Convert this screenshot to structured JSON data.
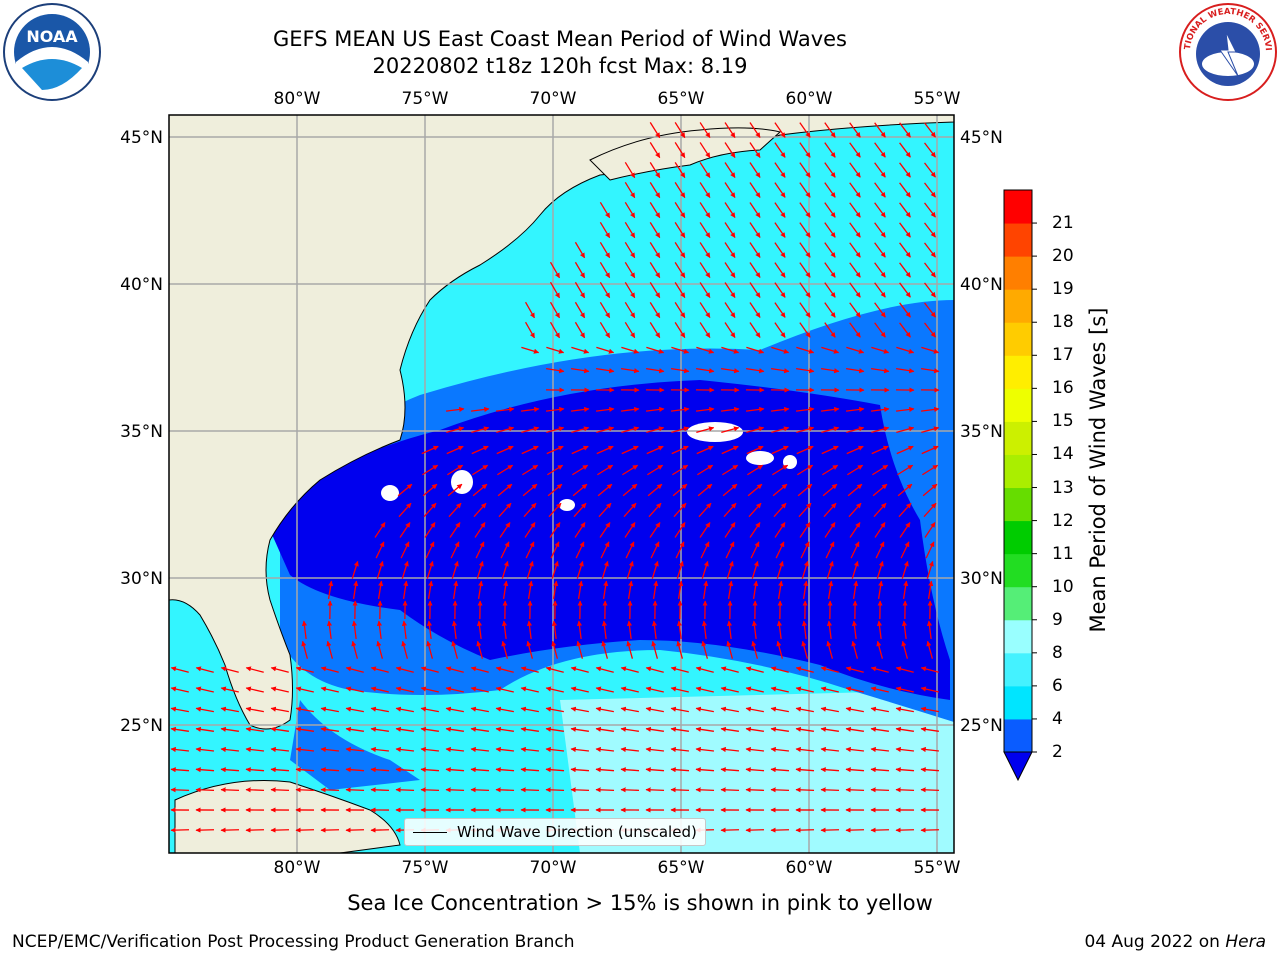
{
  "title": {
    "line1": "GEFS MEAN US East Coast Mean Period of Wind Waves",
    "line2": "20220802 t18z 120h fcst   Max: 8.19"
  },
  "axes": {
    "lon_ticks": [
      "80°W",
      "75°W",
      "70°W",
      "65°W",
      "60°W",
      "55°W"
    ],
    "lat_ticks": [
      "45°N",
      "40°N",
      "35°N",
      "30°N",
      "25°N"
    ]
  },
  "colorbar": {
    "label": "Mean Period of Wind Waves [s]",
    "ticks": [
      "2",
      "4",
      "6",
      "8",
      "9",
      "10",
      "11",
      "12",
      "13",
      "14",
      "15",
      "16",
      "17",
      "18",
      "19",
      "20",
      "21"
    ],
    "colors": [
      "#0a5cff",
      "#00e5ff",
      "#44f2ff",
      "#99ffff",
      "#55ee77",
      "#22dd22",
      "#00cc00",
      "#66dd00",
      "#aaee00",
      "#ccf000",
      "#eeff00",
      "#ffee00",
      "#ffcc00",
      "#ffaa00",
      "#ff7f00",
      "#ff4400",
      "#ff0000"
    ],
    "under_color": "#0000ee"
  },
  "legend": {
    "label": "Wind Wave Direction (unscaled)"
  },
  "footer": {
    "note": "Sea Ice Concentration > 15% is shown in pink to yellow",
    "left": "NCEP/EMC/Verification Post Processing Product Generation Branch",
    "right_date": "04 Aug 2022 on ",
    "right_host": "Hera"
  },
  "logos": {
    "left": "NOAA",
    "right": "NATIONAL WEATHER SERVICE"
  },
  "map_colors": {
    "land": "#efeedc",
    "ocean_light": "#33f5ff",
    "ocean_mid": "#0a78ff",
    "ocean_deep": "#0000ee",
    "ocean_pale": "#a0fbff",
    "arrow": "#ff0000"
  }
}
